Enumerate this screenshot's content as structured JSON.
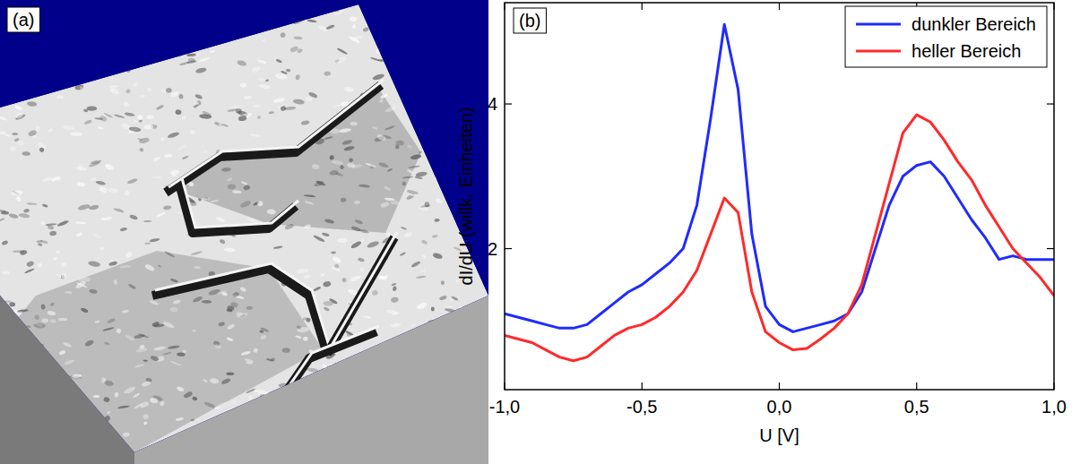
{
  "image_panel": {
    "label": "(a)"
  },
  "chart_data": {
    "type": "line",
    "panel_label": "(b)",
    "xlabel": "U [V]",
    "ylabel": "dI/dU (willk. Einheiten)",
    "x": [
      -1.0,
      -0.95,
      -0.9,
      -0.85,
      -0.8,
      -0.75,
      -0.7,
      -0.65,
      -0.6,
      -0.55,
      -0.5,
      -0.45,
      -0.4,
      -0.35,
      -0.3,
      -0.25,
      -0.2,
      -0.15,
      -0.1,
      -0.05,
      0.0,
      0.05,
      0.1,
      0.15,
      0.2,
      0.25,
      0.3,
      0.35,
      0.4,
      0.45,
      0.5,
      0.55,
      0.6,
      0.65,
      0.7,
      0.75,
      0.8,
      0.85,
      0.9,
      0.95,
      1.0
    ],
    "series": [
      {
        "name": "dunkler Bereich",
        "color": "#1f2bff",
        "values": [
          1.1,
          1.05,
          1.0,
          0.95,
          0.9,
          0.9,
          0.95,
          1.1,
          1.25,
          1.4,
          1.5,
          1.65,
          1.8,
          2.0,
          2.6,
          3.8,
          5.1,
          4.2,
          2.2,
          1.2,
          0.95,
          0.85,
          0.9,
          0.95,
          1.0,
          1.1,
          1.4,
          2.0,
          2.6,
          3.0,
          3.15,
          3.2,
          3.0,
          2.7,
          2.4,
          2.15,
          1.85,
          1.9,
          1.85,
          1.85,
          1.85
        ]
      },
      {
        "name": "heller Bereich",
        "color": "#ff2a2a",
        "values": [
          0.8,
          0.75,
          0.7,
          0.6,
          0.5,
          0.45,
          0.5,
          0.65,
          0.8,
          0.9,
          0.95,
          1.05,
          1.2,
          1.4,
          1.7,
          2.2,
          2.7,
          2.5,
          1.4,
          0.85,
          0.7,
          0.6,
          0.62,
          0.75,
          0.9,
          1.1,
          1.5,
          2.2,
          2.9,
          3.6,
          3.85,
          3.75,
          3.5,
          3.2,
          2.95,
          2.6,
          2.3,
          2.0,
          1.8,
          1.6,
          1.35
        ]
      }
    ],
    "xlim": [
      -1.0,
      1.0
    ],
    "ylim": [
      0.05,
      5.4
    ],
    "xticks": [
      {
        "value": -1.0,
        "label": "-1,0"
      },
      {
        "value": -0.5,
        "label": "-0,5"
      },
      {
        "value": 0.0,
        "label": "0,0"
      },
      {
        "value": 0.5,
        "label": "0,5"
      },
      {
        "value": 1.0,
        "label": "1,0"
      }
    ],
    "yticks": [
      2,
      4
    ],
    "legend": "upper right",
    "grid": false
  }
}
